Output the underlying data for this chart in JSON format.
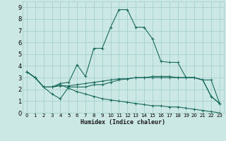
{
  "xlabel": "Humidex (Indice chaleur)",
  "xlim": [
    -0.5,
    23.5
  ],
  "ylim": [
    0,
    9.5
  ],
  "xticks": [
    0,
    1,
    2,
    3,
    4,
    5,
    6,
    7,
    8,
    9,
    10,
    11,
    12,
    13,
    14,
    15,
    16,
    17,
    18,
    19,
    20,
    21,
    22,
    23
  ],
  "yticks": [
    0,
    1,
    2,
    3,
    4,
    5,
    6,
    7,
    8,
    9
  ],
  "bg_color": "#cce8e4",
  "grid_color": "#9fcec8",
  "line_color": "#1a6b5e",
  "series1_x": [
    0,
    1,
    2,
    3,
    4,
    5,
    6,
    7,
    8,
    9,
    10,
    11,
    12,
    13,
    14,
    15,
    16,
    17,
    18,
    19,
    20,
    21,
    22,
    23
  ],
  "series1_y": [
    3.5,
    3.0,
    2.2,
    2.2,
    2.5,
    2.6,
    4.1,
    3.1,
    5.5,
    5.5,
    7.3,
    8.8,
    8.8,
    7.3,
    7.3,
    6.3,
    4.4,
    4.3,
    4.3,
    3.0,
    3.0,
    2.8,
    1.4,
    0.8
  ],
  "series2_x": [
    0,
    1,
    2,
    3,
    4,
    5,
    6,
    7,
    8,
    9,
    10,
    11,
    12,
    13,
    14,
    15,
    16,
    17,
    18,
    19,
    20,
    21,
    22,
    23
  ],
  "series2_y": [
    3.5,
    3.0,
    2.2,
    2.2,
    2.3,
    2.3,
    2.4,
    2.5,
    2.6,
    2.7,
    2.8,
    2.9,
    2.9,
    3.0,
    3.0,
    3.0,
    3.0,
    3.0,
    3.0,
    3.0,
    3.0,
    2.8,
    2.8,
    0.8
  ],
  "series3_x": [
    0,
    1,
    2,
    3,
    4,
    5,
    6,
    7,
    8,
    9,
    10,
    11,
    12,
    13,
    14,
    15,
    16,
    17,
    18,
    19,
    20,
    21,
    22,
    23
  ],
  "series3_y": [
    3.5,
    3.0,
    2.2,
    1.6,
    1.2,
    2.2,
    2.2,
    2.2,
    2.4,
    2.4,
    2.6,
    2.8,
    2.9,
    3.0,
    3.0,
    3.1,
    3.1,
    3.1,
    3.0,
    3.0,
    3.0,
    2.8,
    1.4,
    0.8
  ],
  "series4_x": [
    0,
    1,
    2,
    3,
    4,
    5,
    6,
    7,
    8,
    9,
    10,
    11,
    12,
    13,
    14,
    15,
    16,
    17,
    18,
    19,
    20,
    21,
    22,
    23
  ],
  "series4_y": [
    3.5,
    3.0,
    2.2,
    2.2,
    2.4,
    2.1,
    1.8,
    1.6,
    1.4,
    1.2,
    1.1,
    1.0,
    0.9,
    0.8,
    0.7,
    0.6,
    0.6,
    0.5,
    0.5,
    0.4,
    0.3,
    0.2,
    0.1,
    0.0
  ]
}
